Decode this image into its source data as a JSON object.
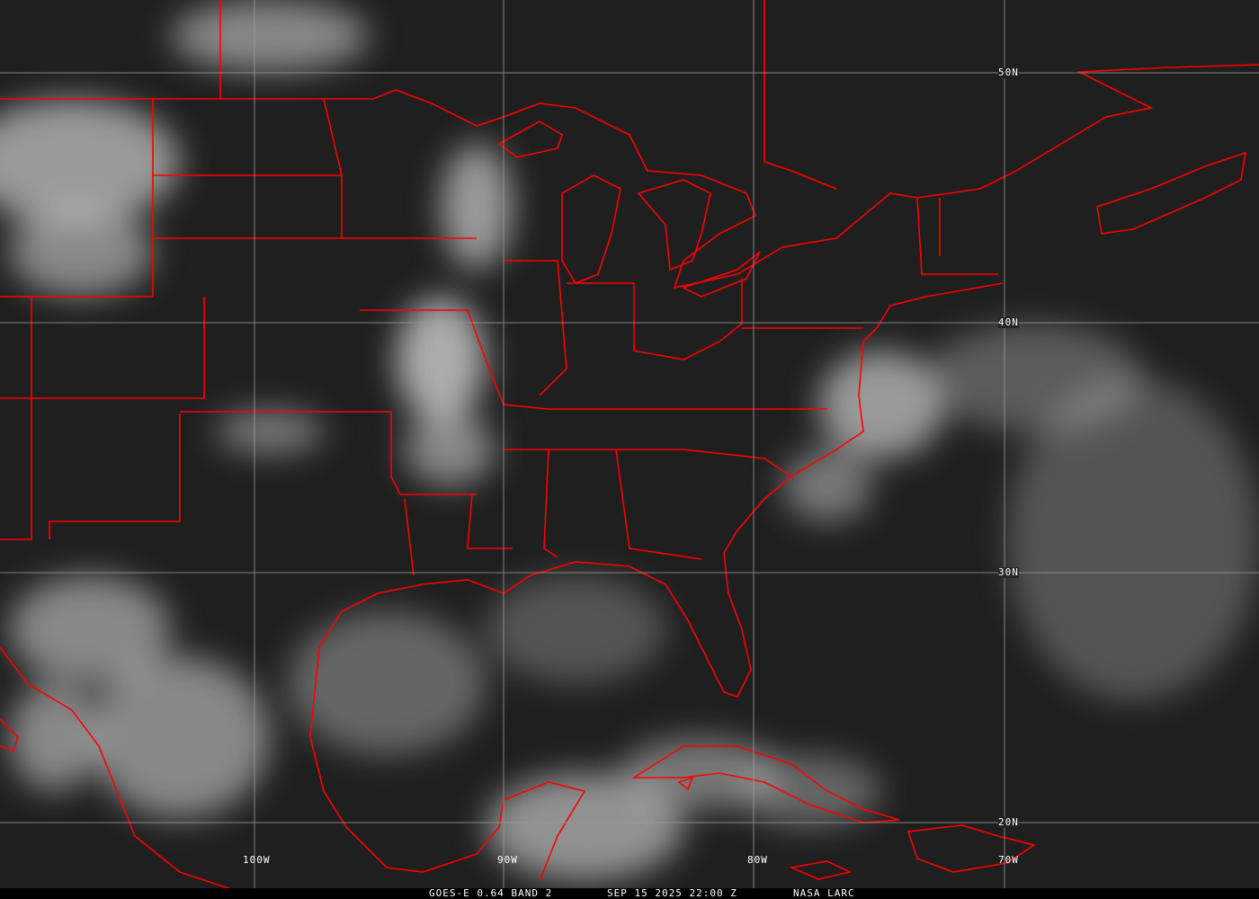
{
  "caption": {
    "product": "GOES-E 0.64 BAND 2",
    "datetime": "SEP 15 2025 22:00 Z",
    "credit": "NASA LARC"
  },
  "grid": {
    "latitudes": [
      "50N",
      "40N",
      "30N",
      "20N"
    ],
    "longitudes": [
      "100W",
      "90W",
      "80W",
      "70W"
    ],
    "color": "#9a9a9a"
  },
  "colors": {
    "borders": "#ff0000",
    "background": "#1f1f1f",
    "clouds": "#d8d8d8"
  }
}
